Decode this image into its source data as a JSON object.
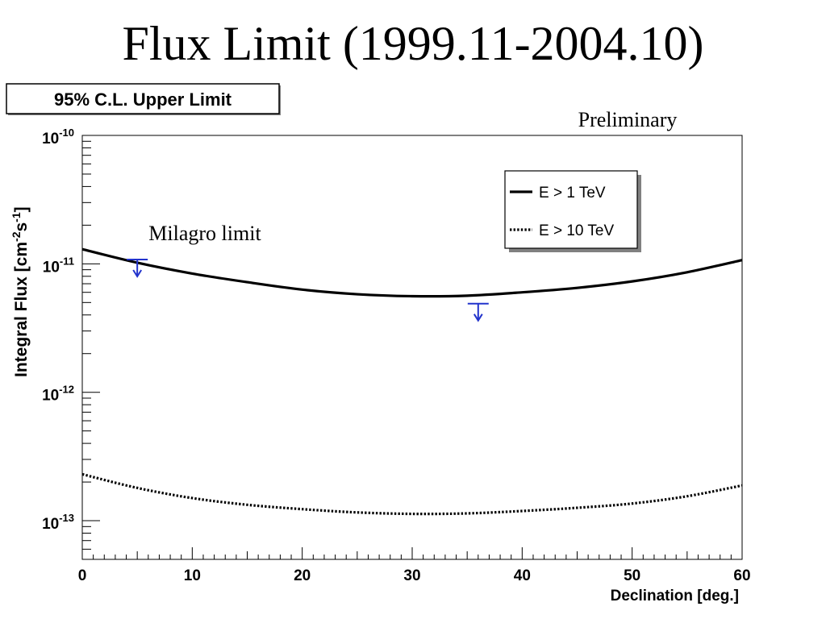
{
  "slide": {
    "title": "Flux Limit (1999.11-2004.10)"
  },
  "chart_data": {
    "type": "line",
    "title": "95% C.L. Upper Limit",
    "annotations": [
      "Preliminary",
      "Milagro limit"
    ],
    "xlabel": "Declination [deg.]",
    "ylabel_main": "Integral Flux [cm",
    "ylabel_exp1": "-2",
    "ylabel_mid": "s",
    "ylabel_exp2": "-1",
    "ylabel_end": "]",
    "xlim": [
      0,
      60
    ],
    "ylim": [
      5e-14,
      1e-10
    ],
    "y_scale": "log",
    "grid": false,
    "legend_position": "top-right",
    "x_ticks": [
      0,
      10,
      20,
      30,
      40,
      50,
      60
    ],
    "x_tick_labels": [
      "0",
      "10",
      "20",
      "30",
      "40",
      "50",
      "60"
    ],
    "y_ticks": [
      {
        "value": 1e-10,
        "base": "10",
        "exp": "-10"
      },
      {
        "value": 1e-11,
        "base": "10",
        "exp": "-11"
      },
      {
        "value": 1e-12,
        "base": "10",
        "exp": "-12"
      },
      {
        "value": 1e-13,
        "base": "10",
        "exp": "-13"
      }
    ],
    "x": [
      0,
      5,
      10,
      15,
      20,
      25,
      30,
      35,
      40,
      45,
      50,
      55,
      60
    ],
    "series": [
      {
        "name": "E > 1 TeV",
        "style": "solid",
        "values": [
          1.3e-11,
          1.02e-11,
          8.4e-12,
          7.2e-12,
          6.3e-12,
          5.8e-12,
          5.6e-12,
          5.65e-12,
          6e-12,
          6.5e-12,
          7.3e-12,
          8.6e-12,
          1.07e-11
        ]
      },
      {
        "name": "E > 10 TeV",
        "style": "dotted",
        "values": [
          2.3e-13,
          1.8e-13,
          1.5e-13,
          1.33e-13,
          1.23e-13,
          1.16e-13,
          1.13e-13,
          1.14e-13,
          1.19e-13,
          1.26e-13,
          1.36e-13,
          1.55e-13,
          1.88e-13
        ]
      }
    ],
    "milagro_limits": [
      {
        "x": 5,
        "y": 1.08e-11
      },
      {
        "x": 36,
        "y": 4.9e-12
      }
    ],
    "colors": {
      "axes": "#000000",
      "series": "#000000",
      "milagro": "#2233cc"
    }
  }
}
